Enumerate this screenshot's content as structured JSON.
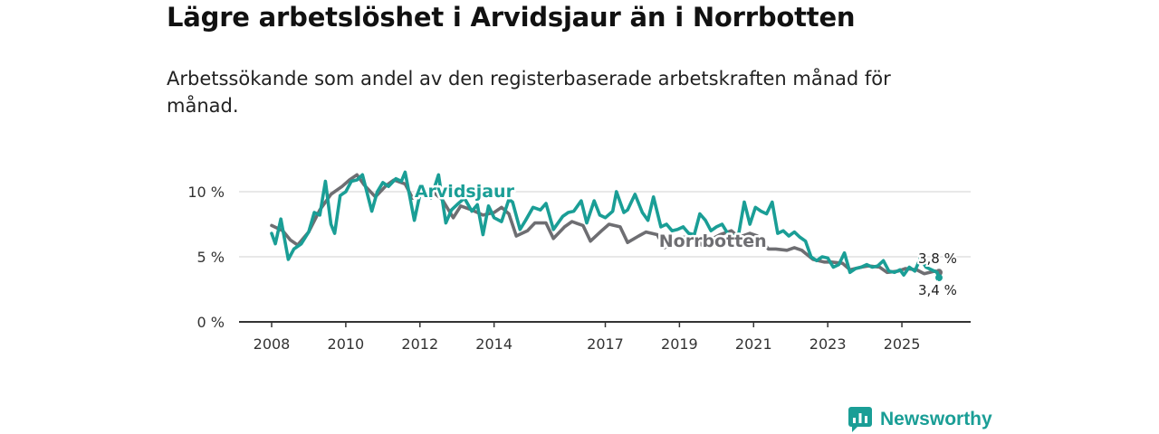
{
  "title": "Lägre arbetslöshet i Arvidsjaur än i Norrbotten",
  "subtitle": "Arbetssökande som andel av den registerbaserade arbetskraften månad för månad.",
  "brand": {
    "name": "Newsworthy",
    "icon": "newsworthy-logo-icon",
    "color": "#1a9e96"
  },
  "chart_data": {
    "type": "line",
    "title": "",
    "xlabel": "",
    "ylabel": "",
    "xlim": [
      2007.9,
      2026.5
    ],
    "ylim": [
      0,
      12
    ],
    "yticks": [
      0,
      5,
      10
    ],
    "ytick_labels": [
      "0 %",
      "5 %",
      "10 %"
    ],
    "xticks": [
      2008,
      2010,
      2012,
      2014,
      2017,
      2019,
      2021,
      2023,
      2025
    ],
    "xtick_labels": [
      "2008",
      "2010",
      "2012",
      "2014",
      "2017",
      "2019",
      "2021",
      "2023",
      "2025"
    ],
    "grid": true,
    "series": [
      {
        "name": "Norrbotten",
        "color": "#6e6e72",
        "label_text": "Norrbotten",
        "end_label": "3,8 %",
        "points": [
          [
            2008.0,
            7.4
          ],
          [
            2008.3,
            7.0
          ],
          [
            2008.5,
            6.3
          ],
          [
            2008.7,
            5.9
          ],
          [
            2009.0,
            6.9
          ],
          [
            2009.3,
            8.6
          ],
          [
            2009.6,
            9.8
          ],
          [
            2009.9,
            10.4
          ],
          [
            2010.1,
            10.9
          ],
          [
            2010.3,
            11.3
          ],
          [
            2010.5,
            10.5
          ],
          [
            2010.8,
            9.6
          ],
          [
            2011.1,
            10.5
          ],
          [
            2011.3,
            10.9
          ],
          [
            2011.6,
            10.6
          ],
          [
            2011.8,
            9.5
          ],
          [
            2012.0,
            9.8
          ],
          [
            2012.3,
            10.1
          ],
          [
            2012.6,
            9.4
          ],
          [
            2012.9,
            8.0
          ],
          [
            2013.1,
            8.9
          ],
          [
            2013.4,
            8.6
          ],
          [
            2013.7,
            8.2
          ],
          [
            2014.0,
            8.4
          ],
          [
            2014.2,
            8.8
          ],
          [
            2014.4,
            8.3
          ],
          [
            2014.6,
            6.6
          ],
          [
            2014.9,
            7.0
          ],
          [
            2015.1,
            7.6
          ],
          [
            2015.4,
            7.6
          ],
          [
            2015.6,
            6.4
          ],
          [
            2015.9,
            7.3
          ],
          [
            2016.1,
            7.7
          ],
          [
            2016.4,
            7.4
          ],
          [
            2016.6,
            6.2
          ],
          [
            2016.9,
            7.0
          ],
          [
            2017.1,
            7.5
          ],
          [
            2017.4,
            7.3
          ],
          [
            2017.6,
            6.1
          ],
          [
            2017.9,
            6.6
          ],
          [
            2018.1,
            6.9
          ],
          [
            2018.4,
            6.7
          ],
          [
            2018.6,
            5.7
          ],
          [
            2018.9,
            6.3
          ],
          [
            2019.1,
            6.5
          ],
          [
            2019.4,
            6.5
          ],
          [
            2019.6,
            5.9
          ],
          [
            2019.9,
            6.4
          ],
          [
            2020.1,
            6.7
          ],
          [
            2020.4,
            7.0
          ],
          [
            2020.6,
            6.5
          ],
          [
            2020.9,
            6.8
          ],
          [
            2021.1,
            6.6
          ],
          [
            2021.4,
            5.6
          ],
          [
            2021.6,
            5.6
          ],
          [
            2021.9,
            5.5
          ],
          [
            2022.1,
            5.7
          ],
          [
            2022.3,
            5.5
          ],
          [
            2022.6,
            4.8
          ],
          [
            2022.9,
            4.6
          ],
          [
            2023.1,
            4.6
          ],
          [
            2023.4,
            4.5
          ],
          [
            2023.6,
            4.0
          ],
          [
            2023.9,
            4.2
          ],
          [
            2024.1,
            4.3
          ],
          [
            2024.4,
            4.2
          ],
          [
            2024.6,
            3.8
          ],
          [
            2024.9,
            3.9
          ],
          [
            2025.1,
            4.1
          ],
          [
            2025.4,
            4.0
          ],
          [
            2025.6,
            3.7
          ],
          [
            2025.9,
            3.9
          ],
          [
            2026.0,
            3.8
          ]
        ]
      },
      {
        "name": "Arvidsjaur",
        "color": "#1a9e96",
        "label_text": "Arvidsjaur",
        "end_label": "3,4 %",
        "points": [
          [
            2008.0,
            6.8
          ],
          [
            2008.1,
            6.0
          ],
          [
            2008.25,
            7.9
          ],
          [
            2008.45,
            4.8
          ],
          [
            2008.6,
            5.6
          ],
          [
            2008.8,
            6.0
          ],
          [
            2009.0,
            6.9
          ],
          [
            2009.15,
            8.4
          ],
          [
            2009.3,
            8.2
          ],
          [
            2009.45,
            10.8
          ],
          [
            2009.6,
            7.5
          ],
          [
            2009.7,
            6.8
          ],
          [
            2009.85,
            9.7
          ],
          [
            2010.0,
            10.0
          ],
          [
            2010.15,
            10.8
          ],
          [
            2010.3,
            10.9
          ],
          [
            2010.45,
            11.3
          ],
          [
            2010.7,
            8.5
          ],
          [
            2010.85,
            10.0
          ],
          [
            2011.0,
            10.7
          ],
          [
            2011.15,
            10.4
          ],
          [
            2011.35,
            11.0
          ],
          [
            2011.5,
            10.8
          ],
          [
            2011.6,
            11.5
          ],
          [
            2011.85,
            7.8
          ],
          [
            2012.0,
            9.8
          ],
          [
            2012.15,
            10.2
          ],
          [
            2012.3,
            9.5
          ],
          [
            2012.5,
            11.3
          ],
          [
            2012.7,
            7.6
          ],
          [
            2012.85,
            8.6
          ],
          [
            2013.0,
            9.0
          ],
          [
            2013.2,
            9.5
          ],
          [
            2013.4,
            8.5
          ],
          [
            2013.55,
            9.0
          ],
          [
            2013.7,
            6.7
          ],
          [
            2013.85,
            8.9
          ],
          [
            2014.0,
            8.0
          ],
          [
            2014.2,
            7.7
          ],
          [
            2014.4,
            9.4
          ],
          [
            2014.5,
            9.2
          ],
          [
            2014.7,
            7.1
          ],
          [
            2014.85,
            7.8
          ],
          [
            2015.05,
            8.8
          ],
          [
            2015.25,
            8.6
          ],
          [
            2015.4,
            9.1
          ],
          [
            2015.6,
            7.1
          ],
          [
            2015.85,
            8.1
          ],
          [
            2016.0,
            8.4
          ],
          [
            2016.15,
            8.5
          ],
          [
            2016.35,
            9.3
          ],
          [
            2016.5,
            7.6
          ],
          [
            2016.7,
            9.3
          ],
          [
            2016.85,
            8.2
          ],
          [
            2017.0,
            8.0
          ],
          [
            2017.2,
            8.5
          ],
          [
            2017.3,
            10.0
          ],
          [
            2017.5,
            8.4
          ],
          [
            2017.6,
            8.6
          ],
          [
            2017.8,
            9.8
          ],
          [
            2018.0,
            8.4
          ],
          [
            2018.15,
            7.8
          ],
          [
            2018.3,
            9.6
          ],
          [
            2018.5,
            7.3
          ],
          [
            2018.65,
            7.5
          ],
          [
            2018.8,
            7.0
          ],
          [
            2018.95,
            7.1
          ],
          [
            2019.1,
            7.3
          ],
          [
            2019.25,
            6.8
          ],
          [
            2019.4,
            6.7
          ],
          [
            2019.55,
            8.3
          ],
          [
            2019.7,
            7.8
          ],
          [
            2019.85,
            7.0
          ],
          [
            2020.0,
            7.3
          ],
          [
            2020.15,
            7.5
          ],
          [
            2020.3,
            6.8
          ],
          [
            2020.45,
            6.6
          ],
          [
            2020.6,
            6.8
          ],
          [
            2020.75,
            9.2
          ],
          [
            2020.9,
            7.5
          ],
          [
            2021.05,
            8.8
          ],
          [
            2021.2,
            8.5
          ],
          [
            2021.35,
            8.3
          ],
          [
            2021.5,
            9.2
          ],
          [
            2021.65,
            6.8
          ],
          [
            2021.8,
            7.0
          ],
          [
            2021.95,
            6.6
          ],
          [
            2022.1,
            6.9
          ],
          [
            2022.25,
            6.5
          ],
          [
            2022.4,
            6.2
          ],
          [
            2022.55,
            5.0
          ],
          [
            2022.7,
            4.7
          ],
          [
            2022.85,
            5.0
          ],
          [
            2023.0,
            4.9
          ],
          [
            2023.15,
            4.2
          ],
          [
            2023.3,
            4.4
          ],
          [
            2023.45,
            5.3
          ],
          [
            2023.6,
            3.8
          ],
          [
            2023.75,
            4.1
          ],
          [
            2023.9,
            4.2
          ],
          [
            2024.05,
            4.4
          ],
          [
            2024.2,
            4.2
          ],
          [
            2024.35,
            4.3
          ],
          [
            2024.5,
            4.7
          ],
          [
            2024.65,
            3.9
          ],
          [
            2024.8,
            3.8
          ],
          [
            2024.95,
            4.0
          ],
          [
            2025.05,
            3.6
          ],
          [
            2025.2,
            4.2
          ],
          [
            2025.35,
            3.9
          ],
          [
            2025.5,
            4.9
          ],
          [
            2025.65,
            4.2
          ],
          [
            2025.8,
            4.0
          ],
          [
            2025.95,
            3.8
          ],
          [
            2026.0,
            3.4
          ]
        ]
      }
    ]
  }
}
